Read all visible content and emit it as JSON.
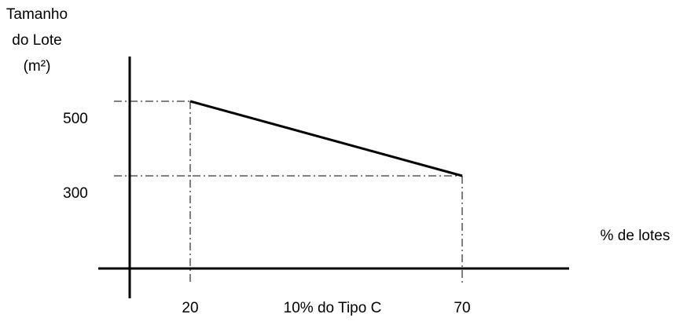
{
  "chart_data": {
    "type": "line",
    "title": "",
    "ylabel_lines": [
      "Tamanho",
      "do Lote",
      "(m²)"
    ],
    "xlabel": "% de lotes",
    "x_annotation": "10% do Tipo C",
    "x_ticks": [
      {
        "value": 20,
        "label": "20"
      },
      {
        "value": 70,
        "label": "70"
      }
    ],
    "y_ticks": [
      {
        "value": 500,
        "label": "500"
      },
      {
        "value": 300,
        "label": "300"
      }
    ],
    "series": [
      {
        "points": [
          {
            "x": 20,
            "y": 500
          },
          {
            "x": 70,
            "y": 300
          }
        ]
      }
    ],
    "reference_lines": "dash-dot guides from each endpoint to both axes",
    "grid": false,
    "colors": {
      "line": "#000000",
      "axis": "#000000",
      "guide": "#000000"
    }
  }
}
